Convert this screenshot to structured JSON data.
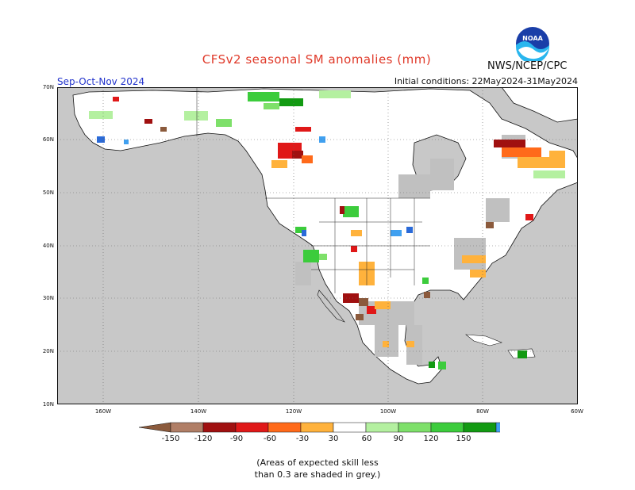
{
  "title": "CFSv2 seasonal SM anomalies (mm)",
  "season": "Sep-Oct-Nov 2024",
  "organization": "NWS/NCEP/CPC",
  "logo_text": "NOAA",
  "initial_conditions": "Initial conditions: 22May2024-31May2024",
  "lat_labels": [
    "70N",
    "60N",
    "50N",
    "40N",
    "30N",
    "20N",
    "10N"
  ],
  "lon_labels": [
    "160W",
    "140W",
    "120W",
    "100W",
    "80W",
    "60W"
  ],
  "colorbar": {
    "labels": [
      "-150",
      "-120",
      "-90",
      "-60",
      "-30",
      "30",
      "60",
      "90",
      "120",
      "150"
    ],
    "colors": [
      "#8b5a3c",
      "#b07e66",
      "#a01010",
      "#e01818",
      "#ff6a1a",
      "#ffb23c",
      "#ffffff",
      "#b4f0a0",
      "#7ee06a",
      "#3ccc3c",
      "#129a12",
      "#40a0f0",
      "#2a6ad8"
    ]
  },
  "note": [
    "(Areas of expected skill less",
    "than 0.3 are shaded in grey.)"
  ],
  "colors": {
    "ocean": "#c8c8c8",
    "low_skill": "#c0c0c0",
    "land": "#ffffff"
  }
}
